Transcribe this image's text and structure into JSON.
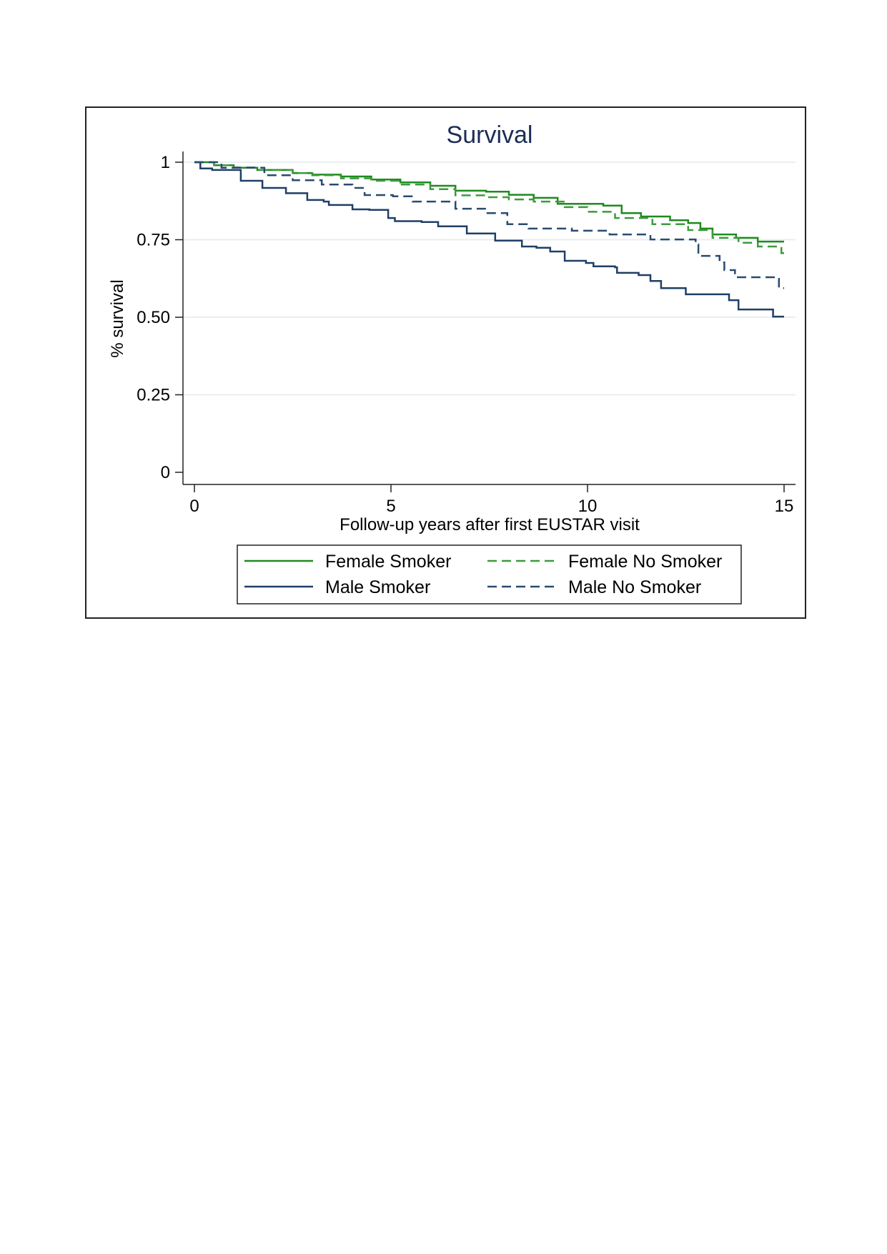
{
  "chart_data": {
    "type": "line",
    "title": "Survival",
    "xlabel": "Follow-up years after first EUSTAR visit",
    "ylabel": "% survival",
    "xlim": [
      0,
      15
    ],
    "ylim": [
      0,
      1
    ],
    "x_ticks": [
      0,
      5,
      10,
      15
    ],
    "x_tick_labels": [
      "0",
      "5",
      "10",
      "15"
    ],
    "y_ticks": [
      0,
      0.25,
      0.5,
      0.75,
      1
    ],
    "y_tick_labels": [
      "0",
      "0.25",
      "0.50",
      "0.75",
      "1"
    ],
    "grid": true,
    "legend_position": "bottom",
    "step": true,
    "series": [
      {
        "name": "Female Smoker",
        "color": "#1e8a1e",
        "dash": false,
        "points": [
          [
            0,
            1
          ],
          [
            0.5,
            0.99
          ],
          [
            1.0,
            0.982
          ],
          [
            1.6,
            0.975
          ],
          [
            2.5,
            0.965
          ],
          [
            3.0,
            0.96
          ],
          [
            3.73,
            0.954
          ],
          [
            4.5,
            0.944
          ],
          [
            5.24,
            0.935
          ],
          [
            6.0,
            0.924
          ],
          [
            6.64,
            0.908
          ],
          [
            7.42,
            0.905
          ],
          [
            8.0,
            0.895
          ],
          [
            8.63,
            0.885
          ],
          [
            9.24,
            0.866
          ],
          [
            10.4,
            0.86
          ],
          [
            10.87,
            0.836
          ],
          [
            11.36,
            0.825
          ],
          [
            12.1,
            0.813
          ],
          [
            12.56,
            0.804
          ],
          [
            12.87,
            0.786
          ],
          [
            13.18,
            0.767
          ],
          [
            13.78,
            0.756
          ],
          [
            14.33,
            0.744
          ],
          [
            15,
            0.744
          ]
        ]
      },
      {
        "name": "Female No Smoker",
        "color": "#3c9a3c",
        "dash": true,
        "points": [
          [
            0,
            1
          ],
          [
            0.5,
            0.99
          ],
          [
            1.0,
            0.983
          ],
          [
            1.6,
            0.975
          ],
          [
            2.5,
            0.965
          ],
          [
            3.0,
            0.958
          ],
          [
            3.73,
            0.948
          ],
          [
            4.5,
            0.94
          ],
          [
            5.24,
            0.928
          ],
          [
            6.0,
            0.913
          ],
          [
            6.64,
            0.893
          ],
          [
            7.42,
            0.887
          ],
          [
            8.0,
            0.88
          ],
          [
            8.63,
            0.873
          ],
          [
            9.42,
            0.855
          ],
          [
            10.0,
            0.84
          ],
          [
            10.7,
            0.82
          ],
          [
            11.65,
            0.8
          ],
          [
            12.56,
            0.781
          ],
          [
            13.18,
            0.756
          ],
          [
            13.84,
            0.74
          ],
          [
            14.33,
            0.728
          ],
          [
            14.93,
            0.707
          ],
          [
            15,
            0.707
          ]
        ]
      },
      {
        "name": "Male Smoker",
        "color": "#1f3f66",
        "dash": false,
        "points": [
          [
            0,
            1
          ],
          [
            0.15,
            0.98
          ],
          [
            0.45,
            0.975
          ],
          [
            1.18,
            0.94
          ],
          [
            1.73,
            0.917
          ],
          [
            2.33,
            0.9
          ],
          [
            2.87,
            0.878
          ],
          [
            3.29,
            0.873
          ],
          [
            3.42,
            0.862
          ],
          [
            4.02,
            0.848
          ],
          [
            4.45,
            0.846
          ],
          [
            4.93,
            0.82
          ],
          [
            5.1,
            0.81
          ],
          [
            5.78,
            0.807
          ],
          [
            6.2,
            0.793
          ],
          [
            6.93,
            0.77
          ],
          [
            7.42,
            0.77
          ],
          [
            7.65,
            0.747
          ],
          [
            8.15,
            0.747
          ],
          [
            8.33,
            0.728
          ],
          [
            8.7,
            0.724
          ],
          [
            9.05,
            0.712
          ],
          [
            9.42,
            0.682
          ],
          [
            9.96,
            0.675
          ],
          [
            10.15,
            0.664
          ],
          [
            10.7,
            0.661
          ],
          [
            10.75,
            0.643
          ],
          [
            11.3,
            0.636
          ],
          [
            11.6,
            0.617
          ],
          [
            11.87,
            0.594
          ],
          [
            12.36,
            0.594
          ],
          [
            12.5,
            0.574
          ],
          [
            13.47,
            0.574
          ],
          [
            13.6,
            0.555
          ],
          [
            13.84,
            0.525
          ],
          [
            14.7,
            0.525
          ],
          [
            14.72,
            0.502
          ],
          [
            15,
            0.502
          ]
        ]
      },
      {
        "name": "Male No Smoker",
        "color": "#2a4a70",
        "dash": true,
        "points": [
          [
            0,
            1
          ],
          [
            0.69,
            0.982
          ],
          [
            1.78,
            0.958
          ],
          [
            2.5,
            0.942
          ],
          [
            3.24,
            0.928
          ],
          [
            4.02,
            0.917
          ],
          [
            4.33,
            0.894
          ],
          [
            5.05,
            0.89
          ],
          [
            5.55,
            0.873
          ],
          [
            6.64,
            0.85
          ],
          [
            7.42,
            0.836
          ],
          [
            7.96,
            0.8
          ],
          [
            8.5,
            0.786
          ],
          [
            9.6,
            0.779
          ],
          [
            10.56,
            0.767
          ],
          [
            11.6,
            0.751
          ],
          [
            12.75,
            0.735
          ],
          [
            12.82,
            0.698
          ],
          [
            13.36,
            0.677
          ],
          [
            13.48,
            0.652
          ],
          [
            13.75,
            0.629
          ],
          [
            14.84,
            0.624
          ],
          [
            14.87,
            0.594
          ],
          [
            15,
            0.594
          ]
        ]
      }
    ]
  }
}
